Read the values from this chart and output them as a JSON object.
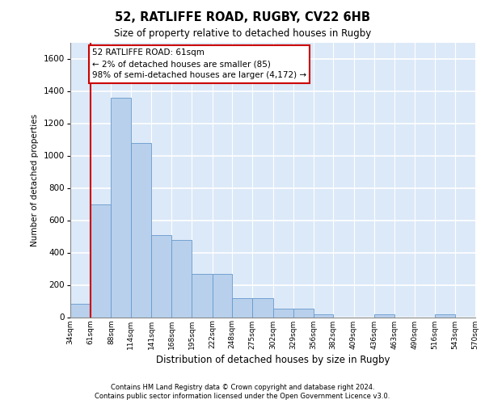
{
  "title_line1": "52, RATLIFFE ROAD, RUGBY, CV22 6HB",
  "title_line2": "Size of property relative to detached houses in Rugby",
  "xlabel": "Distribution of detached houses by size in Rugby",
  "ylabel": "Number of detached properties",
  "footnote1": "Contains HM Land Registry data © Crown copyright and database right 2024.",
  "footnote2": "Contains public sector information licensed under the Open Government Licence v3.0.",
  "bar_color": "#b8d0ec",
  "bar_edge_color": "#6699cc",
  "background_color": "#dce9f8",
  "grid_color": "#ffffff",
  "annotation_text": "52 RATLIFFE ROAD: 61sqm\n← 2% of detached houses are smaller (85)\n98% of semi-detached houses are larger (4,172) →",
  "vline_x": 61,
  "vline_color": "#cc0000",
  "bin_edges": [
    34,
    61,
    88,
    114,
    141,
    168,
    195,
    222,
    248,
    275,
    302,
    329,
    356,
    382,
    409,
    436,
    463,
    490,
    516,
    543,
    570
  ],
  "bin_labels": [
    "34sqm",
    "61sqm",
    "88sqm",
    "114sqm",
    "141sqm",
    "168sqm",
    "195sqm",
    "222sqm",
    "248sqm",
    "275sqm",
    "302sqm",
    "329sqm",
    "356sqm",
    "382sqm",
    "409sqm",
    "436sqm",
    "463sqm",
    "490sqm",
    "516sqm",
    "543sqm",
    "570sqm"
  ],
  "bar_heights": [
    85,
    700,
    1360,
    1080,
    510,
    480,
    270,
    270,
    120,
    120,
    55,
    55,
    20,
    0,
    0,
    20,
    0,
    0,
    20,
    0
  ],
  "ylim": [
    0,
    1700
  ],
  "yticks": [
    0,
    200,
    400,
    600,
    800,
    1000,
    1200,
    1400,
    1600
  ]
}
